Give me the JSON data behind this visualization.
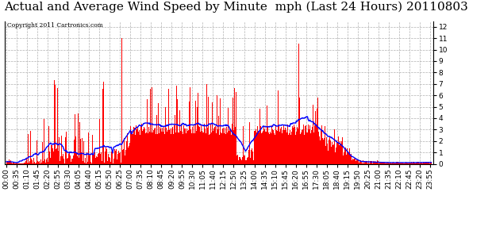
{
  "title": "Actual and Average Wind Speed by Minute  mph (Last 24 Hours) 20110803",
  "copyright_text": "Copyright 2011 Cartronics.com",
  "y_ticks": [
    0.0,
    1.0,
    2.0,
    3.0,
    4.0,
    5.0,
    6.0,
    7.0,
    8.0,
    9.0,
    10.0,
    11.0,
    12.0
  ],
  "ylim": [
    0,
    12.5
  ],
  "background_color": "#ffffff",
  "plot_bg_color": "#ffffff",
  "grid_color": "#b0b0b0",
  "bar_color": "#ff0000",
  "line_color": "#0000ff",
  "title_fontsize": 11,
  "tick_fontsize": 6.5,
  "x_tick_every": 35,
  "total_minutes": 1440
}
